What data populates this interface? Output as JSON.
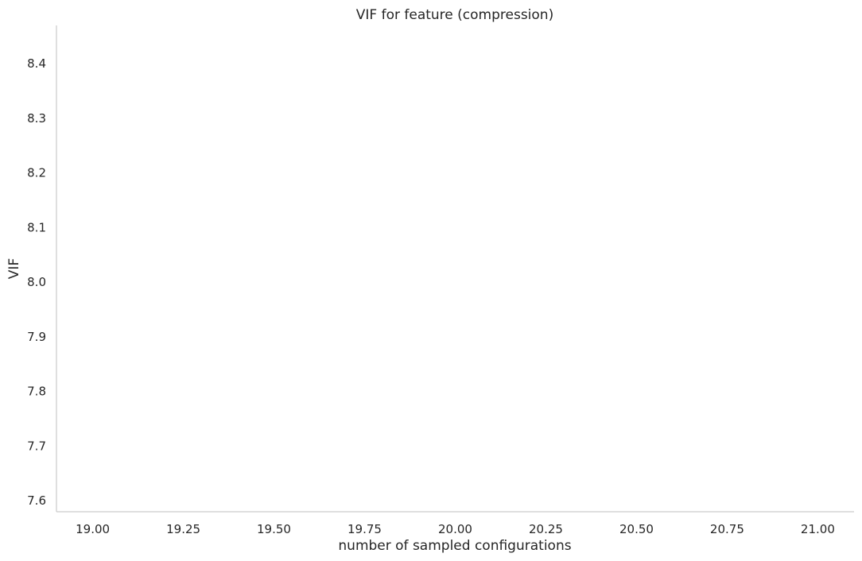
{
  "chart_data": {
    "type": "line",
    "title": "VIF for feature (compression)",
    "xlabel": "number of sampled configurations",
    "ylabel": "VIF",
    "xlim": [
      18.9,
      21.1
    ],
    "ylim": [
      7.58,
      8.47
    ],
    "xticks": [
      19.0,
      19.25,
      19.5,
      19.75,
      20.0,
      20.25,
      20.5,
      20.75,
      21.0
    ],
    "xtick_labels": [
      "19.00",
      "19.25",
      "19.50",
      "19.75",
      "20.00",
      "20.25",
      "20.50",
      "20.75",
      "21.00"
    ],
    "yticks": [
      7.6,
      7.7,
      7.8,
      7.9,
      8.0,
      8.1,
      8.2,
      8.3,
      8.4
    ],
    "ytick_labels": [
      "7.6",
      "7.7",
      "7.8",
      "7.9",
      "8.0",
      "8.1",
      "8.2",
      "8.3",
      "8.4"
    ],
    "grid": false,
    "series": []
  }
}
